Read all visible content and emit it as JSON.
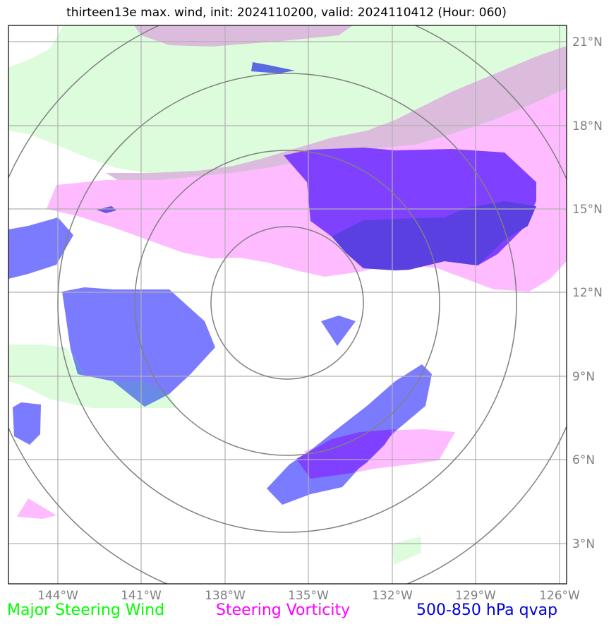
{
  "title": "thirteen13e max. wind, init: 2024110200, valid: 2024110412 (Hour: 060)",
  "lat_labels": [
    "21°N",
    "18°N",
    "15°N",
    "12°N",
    "9°N",
    "6°N",
    "3°N"
  ],
  "lon_labels": [
    "144°W",
    "141°W",
    "138°W",
    "135°W",
    "132°W",
    "129°W",
    "126°W"
  ],
  "legend": {
    "wind": "Major Steering Wind",
    "vorticity": "Steering Vorticity",
    "qvap": "500-850 hPa qvap"
  },
  "colors": {
    "wind": "#dcfcdc",
    "vorticity": "#ffbbff",
    "overlap": "#dcbcdc",
    "qvap": "#7b7bff",
    "qvap_vort": "#8040ff",
    "qvap_wind": "#6a8ae8",
    "dark": "#5a40e0",
    "rings": "#808080",
    "grid": "#b0b0b0"
  }
}
